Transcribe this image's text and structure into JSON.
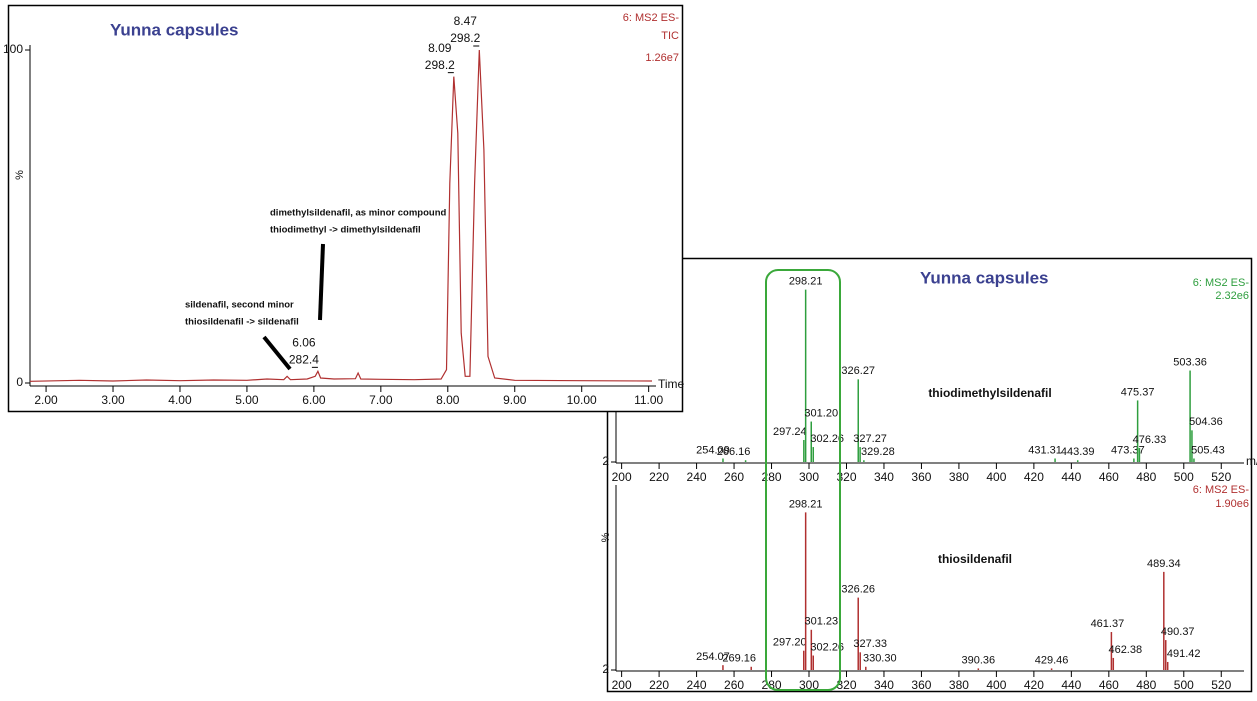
{
  "chart_data": [
    {
      "type": "line",
      "title": "Yunna capsules",
      "corner_labels": [
        "6: MS2 ES-",
        "TIC",
        "1.26e7"
      ],
      "y_label": "%",
      "x_label": "Time",
      "color": "#b03030",
      "x": [
        1.76,
        2.5,
        3.0,
        3.5,
        4.0,
        4.5,
        5.0,
        5.3,
        5.55,
        5.6,
        5.65,
        5.9,
        6.02,
        6.06,
        6.1,
        6.3,
        6.62,
        6.66,
        6.7,
        7.0,
        7.5,
        7.9,
        7.98,
        8.03,
        8.09,
        8.15,
        8.2,
        8.26,
        8.33,
        8.4,
        8.47,
        8.54,
        8.6,
        8.7,
        9.0,
        10.0,
        11.05
      ],
      "values": [
        0.5,
        0.8,
        0.6,
        0.9,
        0.7,
        0.9,
        0.8,
        1.2,
        1,
        2,
        1,
        1.2,
        2,
        3.5,
        1.5,
        1.2,
        1.3,
        3,
        1.2,
        1.1,
        1,
        1.2,
        4,
        60,
        92,
        75,
        15,
        2,
        2,
        60,
        100,
        70,
        8,
        1.5,
        0.8,
        0.7,
        0.6
      ],
      "peak_labels": [
        {
          "time": 8.09,
          "labels": [
            "8.09",
            "298.2"
          ]
        },
        {
          "time": 8.47,
          "labels": [
            "8.47",
            "298.2"
          ]
        },
        {
          "time": 6.06,
          "labels": [
            "6.06",
            "282.4"
          ]
        }
      ],
      "annotations": [
        "dimethylsildenafil, as minor compound",
        "thiodimethyl -> dimethylsildenafil",
        "sildenafil, second minor",
        "thiosildenafil -> sildenafil"
      ],
      "xlim": [
        1.76,
        11.05
      ],
      "ylim": [
        -0.6,
        101.5
      ],
      "xticks": [
        {
          "value": 2,
          "label": "2.00"
        },
        {
          "value": 3,
          "label": "3.00"
        },
        {
          "value": 4,
          "label": "4.00"
        },
        {
          "value": 5,
          "label": "5.00"
        },
        {
          "value": 6,
          "label": "6.00"
        },
        {
          "value": 7,
          "label": "7.00"
        },
        {
          "value": 8,
          "label": "8.00"
        },
        {
          "value": 9,
          "label": "9.00"
        },
        {
          "value": 10,
          "label": "10.00"
        },
        {
          "value": 11,
          "label": "11.00"
        }
      ],
      "yticks": [
        0,
        100
      ]
    },
    {
      "type": "bar",
      "title": "Yunna capsules",
      "corner_labels": [
        "6: MS2 ES-",
        "2.32e6"
      ],
      "compound": "thiodimethylsildenafil",
      "x_label": "m/z",
      "color": "#2e9e3e",
      "x": [
        254.09,
        266.16,
        297.24,
        298.21,
        301.2,
        302.26,
        326.27,
        327.27,
        329.28,
        431.31,
        443.39,
        473.37,
        475.37,
        476.33,
        503.36,
        504.36,
        505.43
      ],
      "labels": [
        "254.09",
        "266.16",
        "297.24",
        "298.21",
        "301.20",
        "302.26",
        "326.27",
        "327.27",
        "329.28",
        "431.31",
        "443.39",
        "473.37",
        "475.37",
        "476.33",
        "503.36",
        "504.36",
        "505.43"
      ],
      "values": [
        4,
        3,
        14.5,
        100,
        25,
        10.5,
        49,
        10.5,
        3,
        4,
        3,
        4,
        37,
        10,
        54,
        20,
        4
      ],
      "xlim": [
        197,
        530
      ],
      "ylim": [
        2,
        114
      ],
      "xticks": [
        200,
        220,
        240,
        260,
        280,
        300,
        320,
        340,
        360,
        380,
        400,
        420,
        440,
        460,
        480,
        500,
        520
      ],
      "yticks": [
        2
      ]
    },
    {
      "type": "bar",
      "corner_labels": [
        "6: MS2 ES-",
        "1.90e6"
      ],
      "compound": "thiosildenafil",
      "y_label": "%",
      "color": "#b03030",
      "x": [
        254.07,
        269.16,
        297.2,
        298.21,
        301.23,
        302.26,
        326.26,
        327.33,
        330.3,
        390.36,
        429.46,
        461.37,
        462.38,
        489.34,
        490.37,
        491.42
      ],
      "labels": [
        "254.07",
        "269.16",
        "297.20",
        "298.21",
        "301.23",
        "302.26",
        "326.26",
        "327.33",
        "330.30",
        "390.36",
        "429.46",
        "461.37",
        "462.38",
        "489.34",
        "490.37",
        "491.42"
      ],
      "values": [
        5,
        4,
        14,
        100,
        27,
        11,
        47,
        13,
        4,
        3,
        3,
        25.6,
        9.5,
        63,
        20.6,
        7
      ],
      "xlim": [
        197,
        530
      ],
      "ylim": [
        2,
        117
      ],
      "xticks": [
        200,
        220,
        240,
        260,
        280,
        300,
        320,
        340,
        360,
        380,
        400,
        420,
        440,
        460,
        480,
        500,
        520
      ],
      "yticks": [
        2
      ]
    }
  ]
}
